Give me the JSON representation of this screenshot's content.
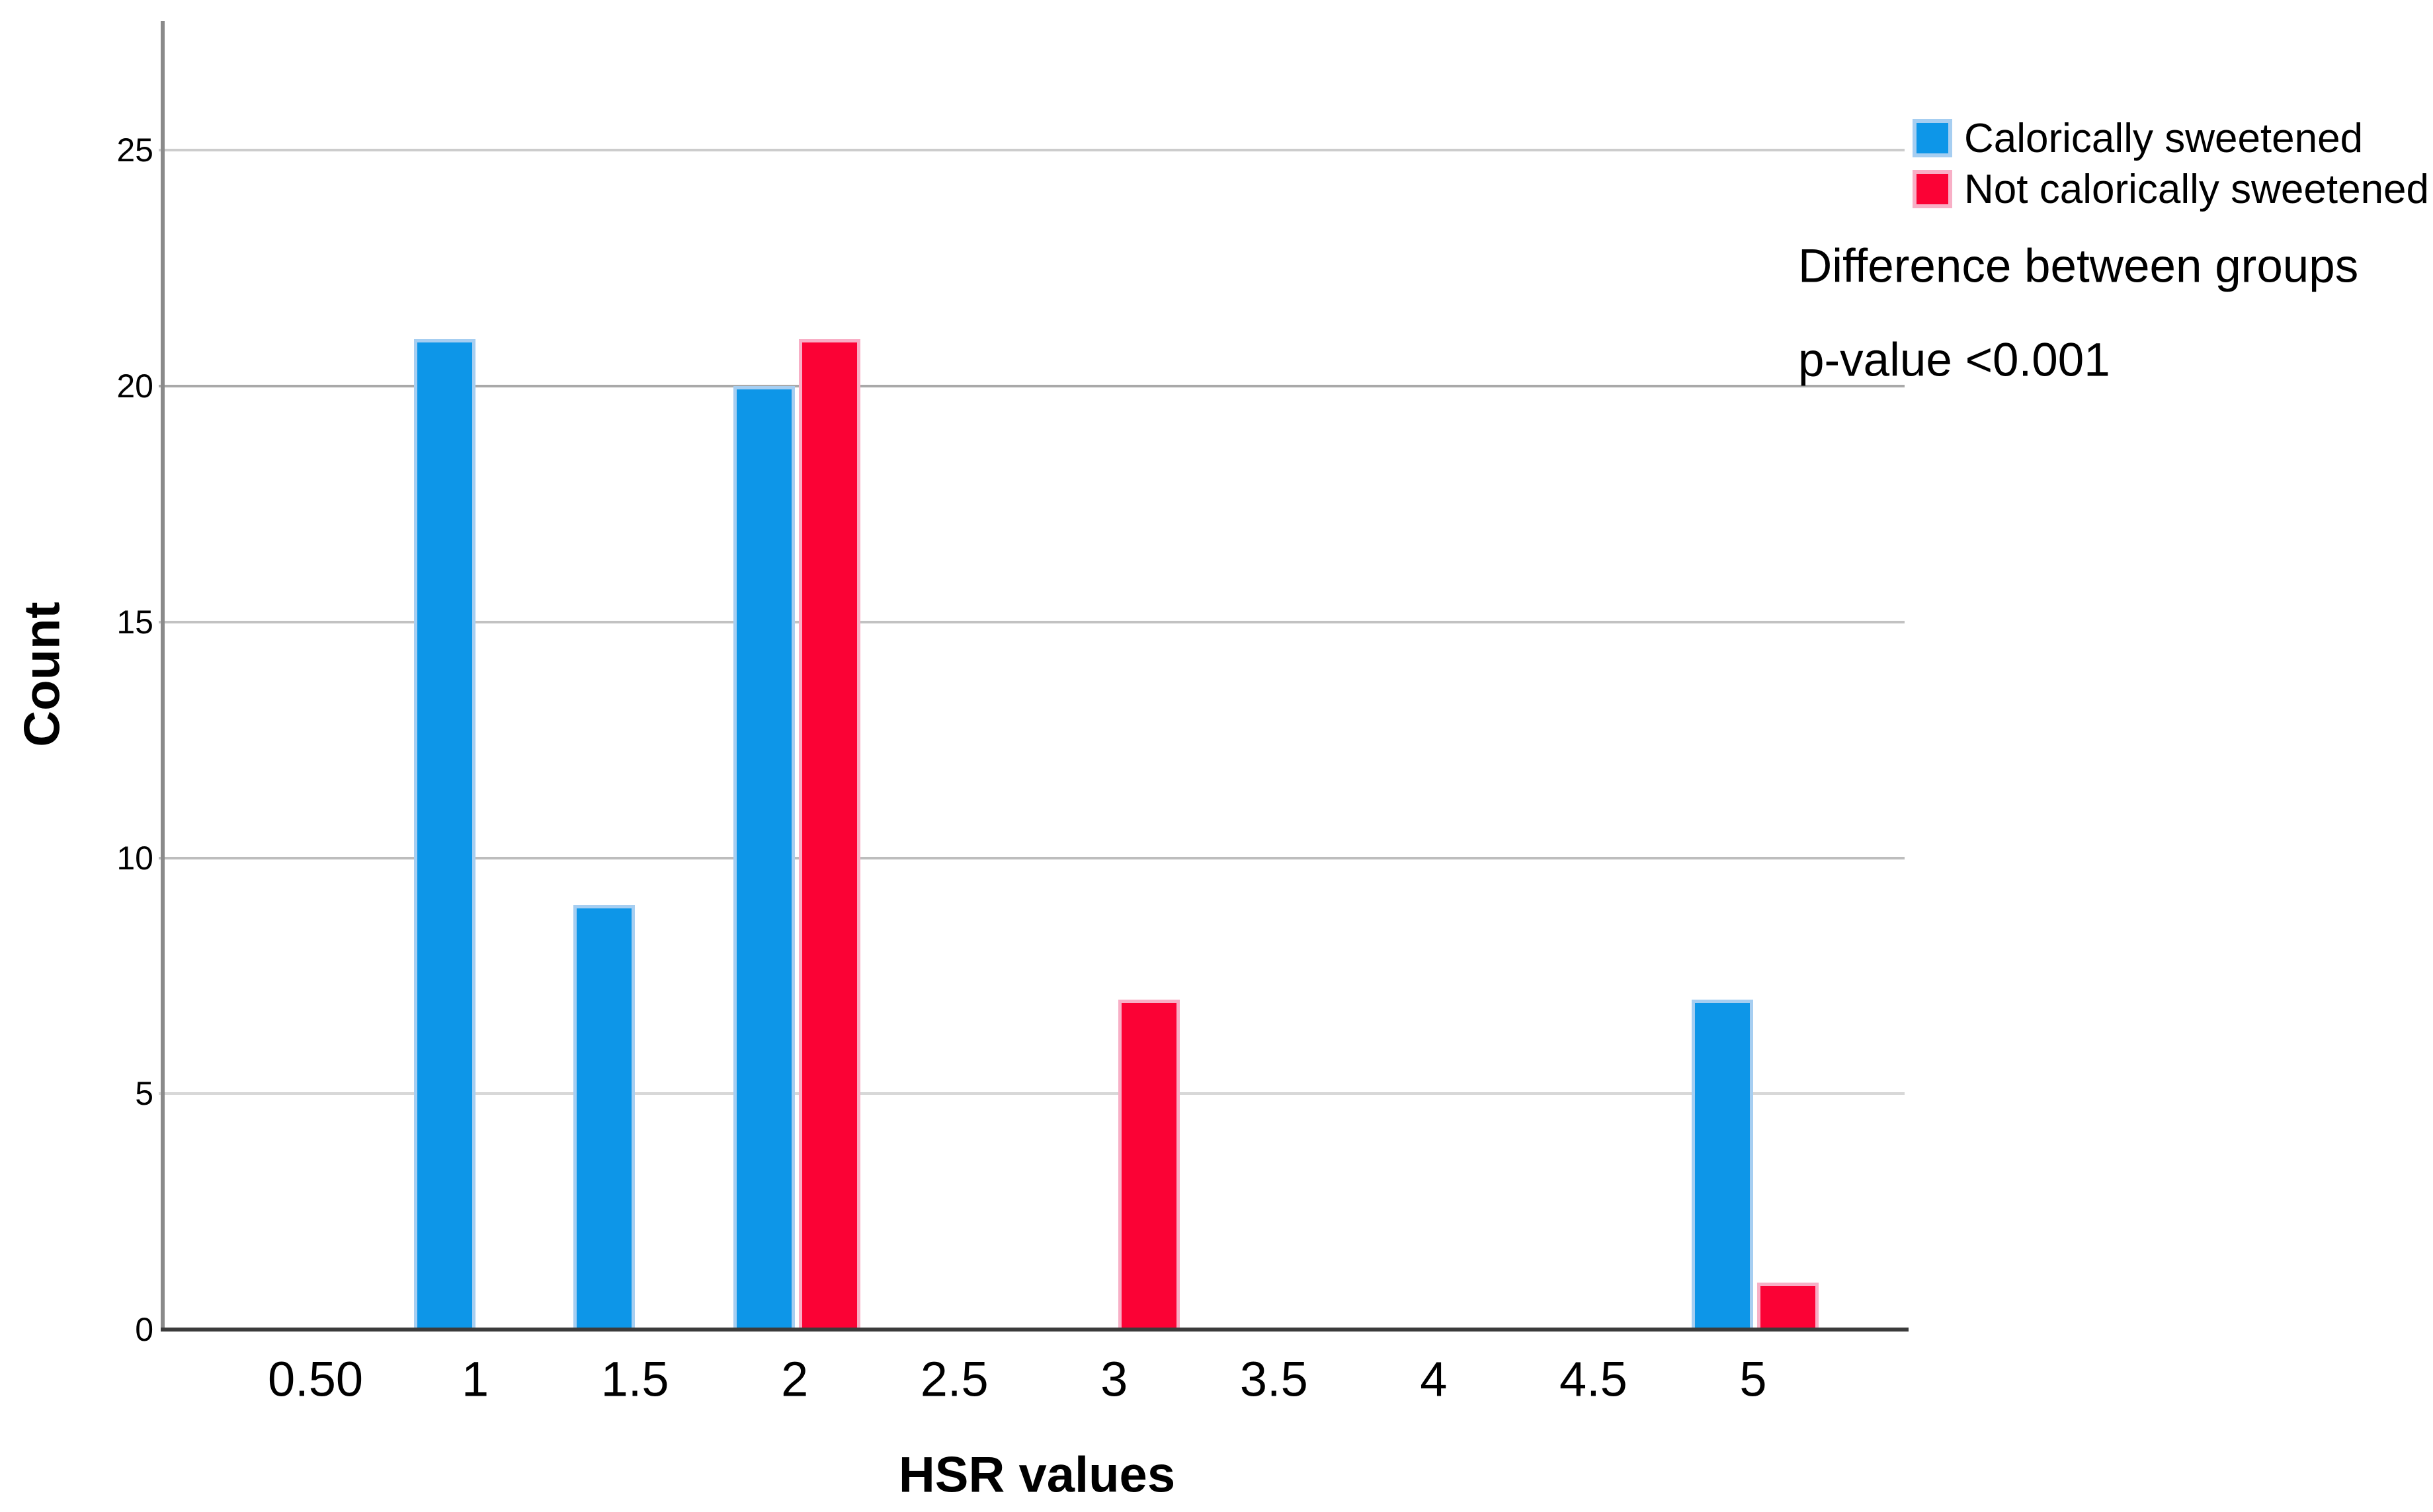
{
  "chart_data": {
    "type": "bar",
    "title": "",
    "xlabel": "HSR values",
    "ylabel": "Count",
    "categories": [
      "0.50",
      "1",
      "1.5",
      "2",
      "2.5",
      "3",
      "3.5",
      "4",
      "4.5",
      "5"
    ],
    "series": [
      {
        "name": "Calorically sweetened",
        "color": "#0D96E8",
        "edge_color": "#A6CEF1",
        "values": [
          0,
          21,
          9,
          20,
          0,
          0,
          0,
          0,
          0,
          7
        ]
      },
      {
        "name": "Not calorically sweetened",
        "color": "#FB0235",
        "edge_color": "#F8AFC6",
        "values": [
          0,
          0,
          0,
          21,
          0,
          7,
          0,
          0,
          0,
          1
        ]
      }
    ],
    "yticks": [
      0,
      5,
      10,
      15,
      20,
      25
    ],
    "ylim": [
      0,
      27.7
    ],
    "grid": "horizontal",
    "legend_position": "top-right"
  },
  "annotation": {
    "line1": "Difference between groups",
    "line2": "p-value <0.001"
  }
}
